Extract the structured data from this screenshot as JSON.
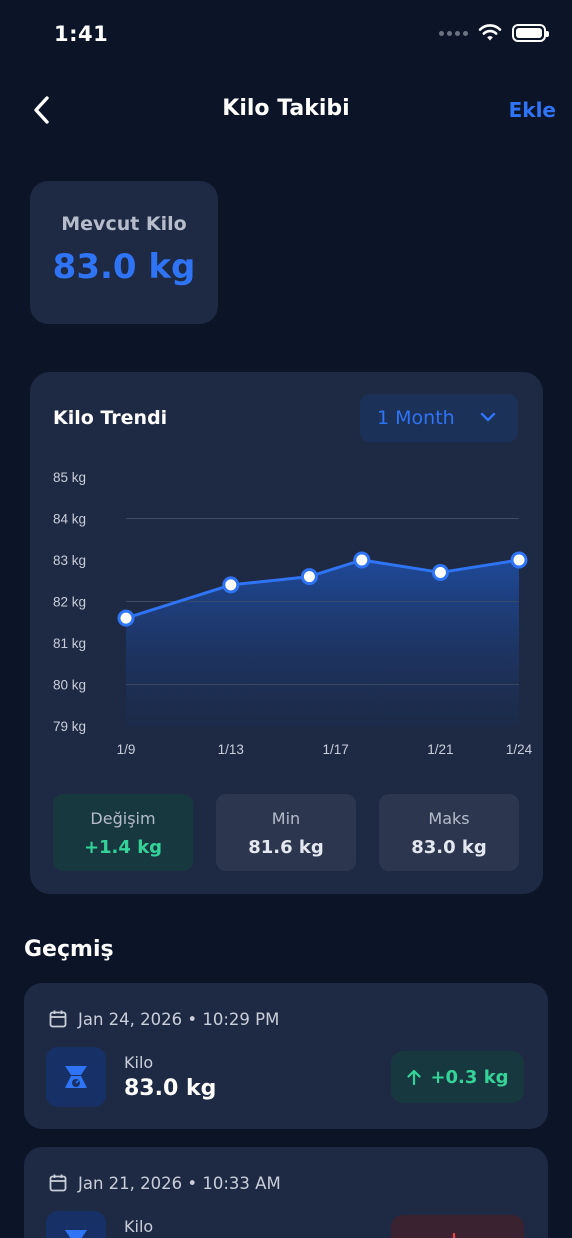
{
  "status_bar": {
    "time": "1:41"
  },
  "nav": {
    "title": "Kilo Takibi",
    "action": "Ekle"
  },
  "current": {
    "label": "Mevcut Kilo",
    "value": "83.0 kg"
  },
  "trend": {
    "title": "Kilo Trendi",
    "period": "1 Month",
    "stats": {
      "change_label": "Değişim",
      "change_value": "+1.4 kg",
      "min_label": "Min",
      "min_value": "81.6 kg",
      "max_label": "Maks",
      "max_value": "83.0 kg"
    }
  },
  "chart_data": {
    "type": "area",
    "y_ticks": [
      "85 kg",
      "84 kg",
      "83 kg",
      "82 kg",
      "81 kg",
      "80 kg",
      "79 kg"
    ],
    "x_ticks": [
      "1/9",
      "1/13",
      "1/17",
      "1/21",
      "1/24"
    ],
    "ylim": [
      79,
      85
    ],
    "x_range": [
      "2026-01-09",
      "2026-01-24"
    ],
    "x": [
      "2026-01-09",
      "2026-01-13",
      "2026-01-16",
      "2026-01-18",
      "2026-01-21",
      "2026-01-24"
    ],
    "values": [
      81.6,
      82.4,
      82.6,
      83.0,
      82.7,
      83.0
    ],
    "colors": {
      "line": "#2f74f5",
      "point_fill": "#ffffff"
    }
  },
  "history": {
    "heading": "Geçmiş",
    "entries": [
      {
        "date": "Jan 24, 2026 • 10:29 PM",
        "label": "Kilo",
        "value": "83.0 kg",
        "delta": "+0.3 kg",
        "direction": "up"
      },
      {
        "date": "Jan 21, 2026 • 10:33 AM",
        "label": "Kilo",
        "value": "",
        "delta": "",
        "direction": "down"
      }
    ]
  }
}
